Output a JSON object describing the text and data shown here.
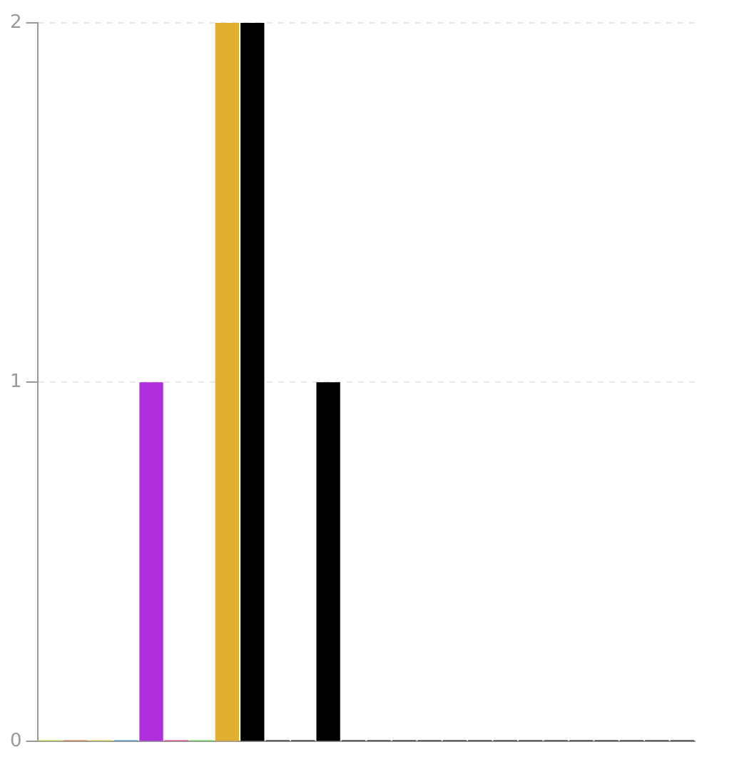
{
  "chart_data": {
    "type": "bar",
    "categories": [
      null,
      null,
      null,
      null,
      null,
      null,
      null,
      null,
      null,
      null,
      null,
      null,
      null,
      null,
      null,
      null,
      null,
      null,
      null,
      null,
      null,
      null,
      null,
      null,
      null,
      null
    ],
    "values": [
      0,
      0,
      0,
      0,
      1,
      0,
      0,
      2,
      2,
      0,
      0,
      1,
      0,
      0,
      0,
      0,
      0,
      0,
      0,
      0,
      0,
      0,
      0,
      0,
      0,
      0
    ],
    "colors": [
      "#c5d93a",
      "#e0703a",
      "#d9d23a",
      "#3a8fd9",
      "#b02fdd",
      "#dd2f7a",
      "#5ddd3a",
      "#e0ae30",
      "#000000",
      "#000000",
      "#000000",
      "#000000",
      "#000000",
      "#000000",
      "#000000",
      "#000000",
      "#000000",
      "#000000",
      "#000000",
      "#000000",
      "#000000",
      "#000000",
      "#000000",
      "#000000",
      "#000000",
      "#000000"
    ],
    "ylim": [
      0,
      2
    ],
    "yticks": [
      0,
      1,
      2
    ],
    "grid": "y",
    "tick_labels": "y"
  }
}
